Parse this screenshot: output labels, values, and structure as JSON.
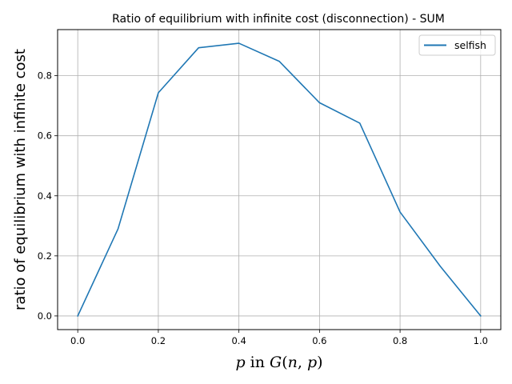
{
  "chart_data": {
    "type": "line",
    "title": "Ratio of equilibrium with infinite cost (disconnection) - SUM",
    "xlabel": "p in G(n,p)",
    "ylabel": "ratio of equilibrium with infinite cost",
    "xlim": [
      -0.05,
      1.05
    ],
    "ylim": [
      -0.0455,
      0.9535
    ],
    "xticks": [
      0.0,
      0.2,
      0.4,
      0.6,
      0.8,
      1.0
    ],
    "xtick_labels": [
      "0.0",
      "0.2",
      "0.4",
      "0.6",
      "0.8",
      "1.0"
    ],
    "yticks": [
      0.0,
      0.2,
      0.4,
      0.6,
      0.8
    ],
    "ytick_labels": [
      "0.0",
      "0.2",
      "0.4",
      "0.6",
      "0.8"
    ],
    "grid": true,
    "legend_position": "top-right",
    "series": [
      {
        "name": "selfish",
        "color": "#1f77b4",
        "x": [
          0.0,
          0.1,
          0.2,
          0.3,
          0.4,
          0.5,
          0.6,
          0.7,
          0.8,
          0.9,
          1.0
        ],
        "y": [
          0.0,
          0.29,
          0.743,
          0.893,
          0.908,
          0.848,
          0.71,
          0.642,
          0.346,
          0.165,
          0.0
        ]
      }
    ]
  }
}
